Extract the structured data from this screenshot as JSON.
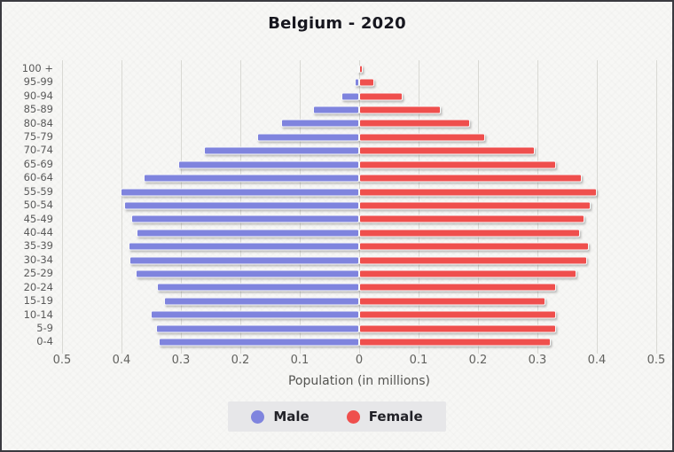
{
  "page": {
    "background": "#f7f7f5",
    "frame_border_color": "#3a3a40"
  },
  "chart_data": {
    "type": "bar",
    "variant": "population-pyramid",
    "title": "Belgium - 2020",
    "xlabel": "Population (in millions)",
    "grid": true,
    "legend_position": "bottom",
    "axis_max_millions": 0.5,
    "x_ticks": [
      "0.5",
      "0.4",
      "0.3",
      "0.2",
      "0.1",
      "0",
      "0.1",
      "0.2",
      "0.3",
      "0.4",
      "0.5"
    ],
    "age_groups": [
      "100 +",
      "95-99",
      "90-94",
      "85-89",
      "80-84",
      "75-79",
      "70-74",
      "65-69",
      "60-64",
      "55-59",
      "50-54",
      "45-49",
      "40-44",
      "35-39",
      "30-34",
      "25-29",
      "20-24",
      "15-19",
      "10-14",
      "5-9",
      "0-4"
    ],
    "series": [
      {
        "name": "Male",
        "color": "#7f84de",
        "values": [
          0.001,
          0.007,
          0.03,
          0.077,
          0.131,
          0.171,
          0.261,
          0.305,
          0.362,
          0.401,
          0.395,
          0.384,
          0.375,
          0.388,
          0.386,
          0.376,
          0.341,
          0.329,
          0.351,
          0.342,
          0.337
        ]
      },
      {
        "name": "Female",
        "color": "#ef4f4d",
        "values": [
          0.006,
          0.025,
          0.073,
          0.138,
          0.186,
          0.212,
          0.295,
          0.331,
          0.374,
          0.4,
          0.389,
          0.379,
          0.371,
          0.386,
          0.384,
          0.366,
          0.331,
          0.313,
          0.332,
          0.331,
          0.322
        ]
      }
    ],
    "colors": {
      "grid": "#d9d9d4",
      "axis_text": "#62625f",
      "age_label_text": "#5a5a5a",
      "title_text": "#17171f",
      "legend_background": "#e7e7e9"
    }
  }
}
